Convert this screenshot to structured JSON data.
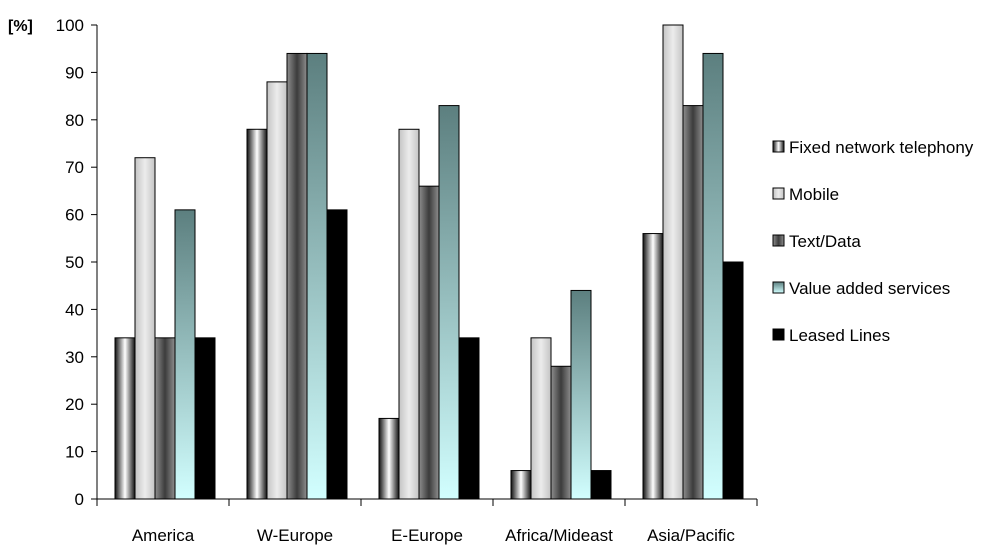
{
  "chart_data": {
    "type": "bar",
    "y_unit_label": "[%]",
    "categories": [
      "America",
      "W-Europe",
      "E-Europe",
      "Africa/Mideast",
      "Asia/Pacific"
    ],
    "series": [
      {
        "name": "Fixed network telephony",
        "values": [
          34,
          78,
          17,
          6,
          56
        ]
      },
      {
        "name": "Mobile",
        "values": [
          72,
          88,
          78,
          34,
          100
        ]
      },
      {
        "name": "Text/Data",
        "values": [
          34,
          94,
          66,
          28,
          83
        ]
      },
      {
        "name": "Value added services",
        "values": [
          61,
          94,
          83,
          44,
          94
        ]
      },
      {
        "name": "Leased Lines",
        "values": [
          34,
          61,
          34,
          6,
          50
        ]
      }
    ],
    "ylim": [
      0,
      100
    ],
    "yticks": [
      0,
      10,
      20,
      30,
      40,
      50,
      60,
      70,
      80,
      90,
      100
    ],
    "grid": false,
    "legend_position": "right"
  }
}
